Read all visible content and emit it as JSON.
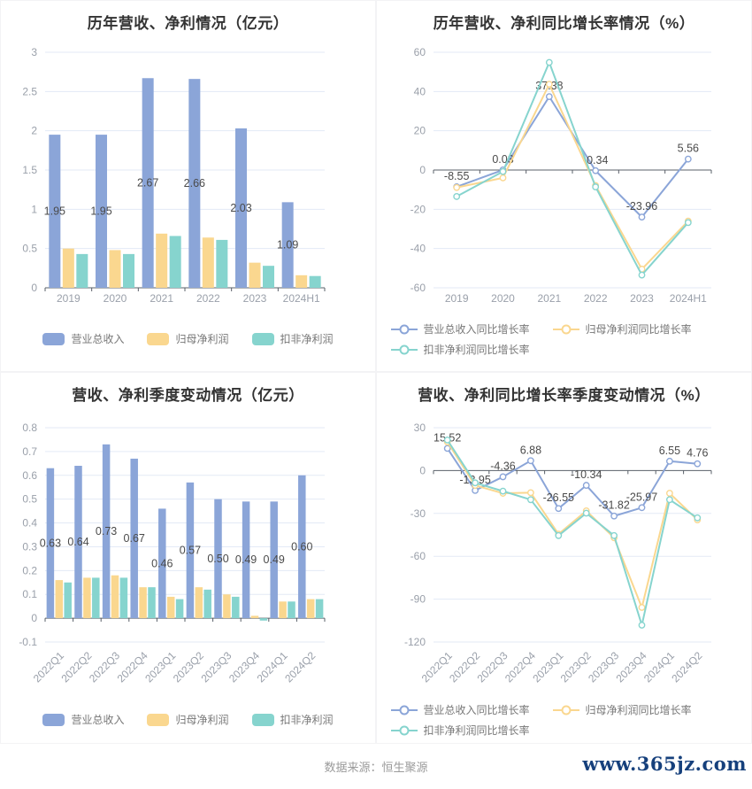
{
  "palette": {
    "blue": "#8BA5D8",
    "yellow": "#FAD78F",
    "teal": "#86D4CE",
    "grid_line": "#E3EAF6",
    "axis_line": "#5A6069",
    "tick_text": "#9aa0aa",
    "label_text": "#4a4a4a",
    "title_text": "#333333",
    "legend_text": "#777777",
    "source_text": "#9b9b9b",
    "website_link": "#16407c",
    "background": "#ffffff"
  },
  "footer": {
    "source_label": "数据来源：恒生聚源",
    "website": "www.365jz.com"
  },
  "chart_data": [
    {
      "type": "bar",
      "title": "历年营收、净利情况（亿元）",
      "categories": [
        "2019",
        "2020",
        "2021",
        "2022",
        "2023",
        "2024H1"
      ],
      "series": [
        {
          "name": "营业总收入",
          "color": "blue",
          "data_labels": true,
          "values": [
            1.95,
            1.95,
            2.67,
            2.66,
            2.03,
            1.09
          ]
        },
        {
          "name": "归母净利润",
          "color": "yellow",
          "data_labels": false,
          "values": [
            0.5,
            0.48,
            0.69,
            0.64,
            0.32,
            0.16
          ]
        },
        {
          "name": "扣非净利润",
          "color": "teal",
          "data_labels": false,
          "values": [
            0.43,
            0.43,
            0.66,
            0.61,
            0.28,
            0.15
          ]
        }
      ],
      "y_axis": {
        "min": 0,
        "max": 3,
        "step": 0.5
      },
      "x_labels_rotated": false,
      "grid": true,
      "legend_position": "bottom",
      "legend_rows": 1
    },
    {
      "type": "line",
      "title": "历年营收、净利同比增长率情况（%）",
      "categories": [
        "2019",
        "2020",
        "2021",
        "2022",
        "2023",
        "2024H1"
      ],
      "series": [
        {
          "name": "营业总收入同比增长率",
          "color": "blue",
          "data_labels": true,
          "values": [
            -8.55,
            0.03,
            37.38,
            -0.34,
            -23.96,
            5.56
          ]
        },
        {
          "name": "归母净利润同比增长率",
          "color": "yellow",
          "data_labels": false,
          "values": [
            -8.9,
            -4.0,
            43.7,
            -7.9,
            -50.5,
            -26.0
          ]
        },
        {
          "name": "扣非净利润同比增长率",
          "color": "teal",
          "data_labels": false,
          "values": [
            -13.5,
            -0.8,
            54.8,
            -8.6,
            -53.5,
            -26.8
          ]
        }
      ],
      "y_axis": {
        "min": -60,
        "max": 60,
        "step": 20
      },
      "x_labels_rotated": false,
      "grid": true,
      "legend_position": "bottom",
      "legend_rows": 2
    },
    {
      "type": "bar",
      "title": "营收、净利季度变动情况（亿元）",
      "categories": [
        "2022Q1",
        "2022Q2",
        "2022Q3",
        "2022Q4",
        "2023Q1",
        "2023Q2",
        "2023Q3",
        "2023Q4",
        "2024Q1",
        "2024Q2"
      ],
      "series": [
        {
          "name": "营业总收入",
          "color": "blue",
          "data_labels": true,
          "values": [
            0.63,
            0.64,
            0.73,
            0.67,
            0.46,
            0.57,
            0.5,
            0.49,
            0.49,
            0.6
          ]
        },
        {
          "name": "归母净利润",
          "color": "yellow",
          "data_labels": false,
          "values": [
            0.16,
            0.17,
            0.18,
            0.13,
            0.09,
            0.13,
            0.1,
            0.01,
            0.07,
            0.08
          ]
        },
        {
          "name": "扣非净利润",
          "color": "teal",
          "data_labels": false,
          "values": [
            0.15,
            0.17,
            0.17,
            0.13,
            0.08,
            0.12,
            0.09,
            -0.01,
            0.07,
            0.08
          ]
        }
      ],
      "y_axis": {
        "min": -0.1,
        "max": 0.8,
        "step": 0.1
      },
      "x_labels_rotated": true,
      "grid": true,
      "legend_position": "bottom",
      "legend_rows": 1
    },
    {
      "type": "line",
      "title": "营收、净利同比增长率季度变动情况（%）",
      "categories": [
        "2022Q1",
        "2022Q2",
        "2022Q3",
        "2022Q4",
        "2023Q1",
        "2023Q2",
        "2023Q3",
        "2023Q4",
        "2024Q1",
        "2024Q2"
      ],
      "series": [
        {
          "name": "营业总收入同比增长率",
          "color": "blue",
          "data_labels": true,
          "values": [
            15.52,
            -13.95,
            -4.36,
            6.88,
            -26.55,
            -10.34,
            -31.82,
            -25.97,
            6.55,
            4.76
          ]
        },
        {
          "name": "归母净利润同比增长率",
          "color": "yellow",
          "data_labels": false,
          "values": [
            20.0,
            -10.4,
            -15.9,
            -15.5,
            -44.5,
            -28.2,
            -47.0,
            -95.8,
            -15.9,
            -34.5
          ]
        },
        {
          "name": "扣非净利润同比增长率",
          "color": "teal",
          "data_labels": false,
          "values": [
            21.4,
            -8.6,
            -14.4,
            -20.4,
            -45.5,
            -29.8,
            -45.5,
            -108.2,
            -20.4,
            -33.1
          ]
        }
      ],
      "y_axis": {
        "min": -120,
        "max": 30,
        "step": 30
      },
      "x_labels_rotated": true,
      "grid": true,
      "legend_position": "bottom",
      "legend_rows": 2
    }
  ]
}
